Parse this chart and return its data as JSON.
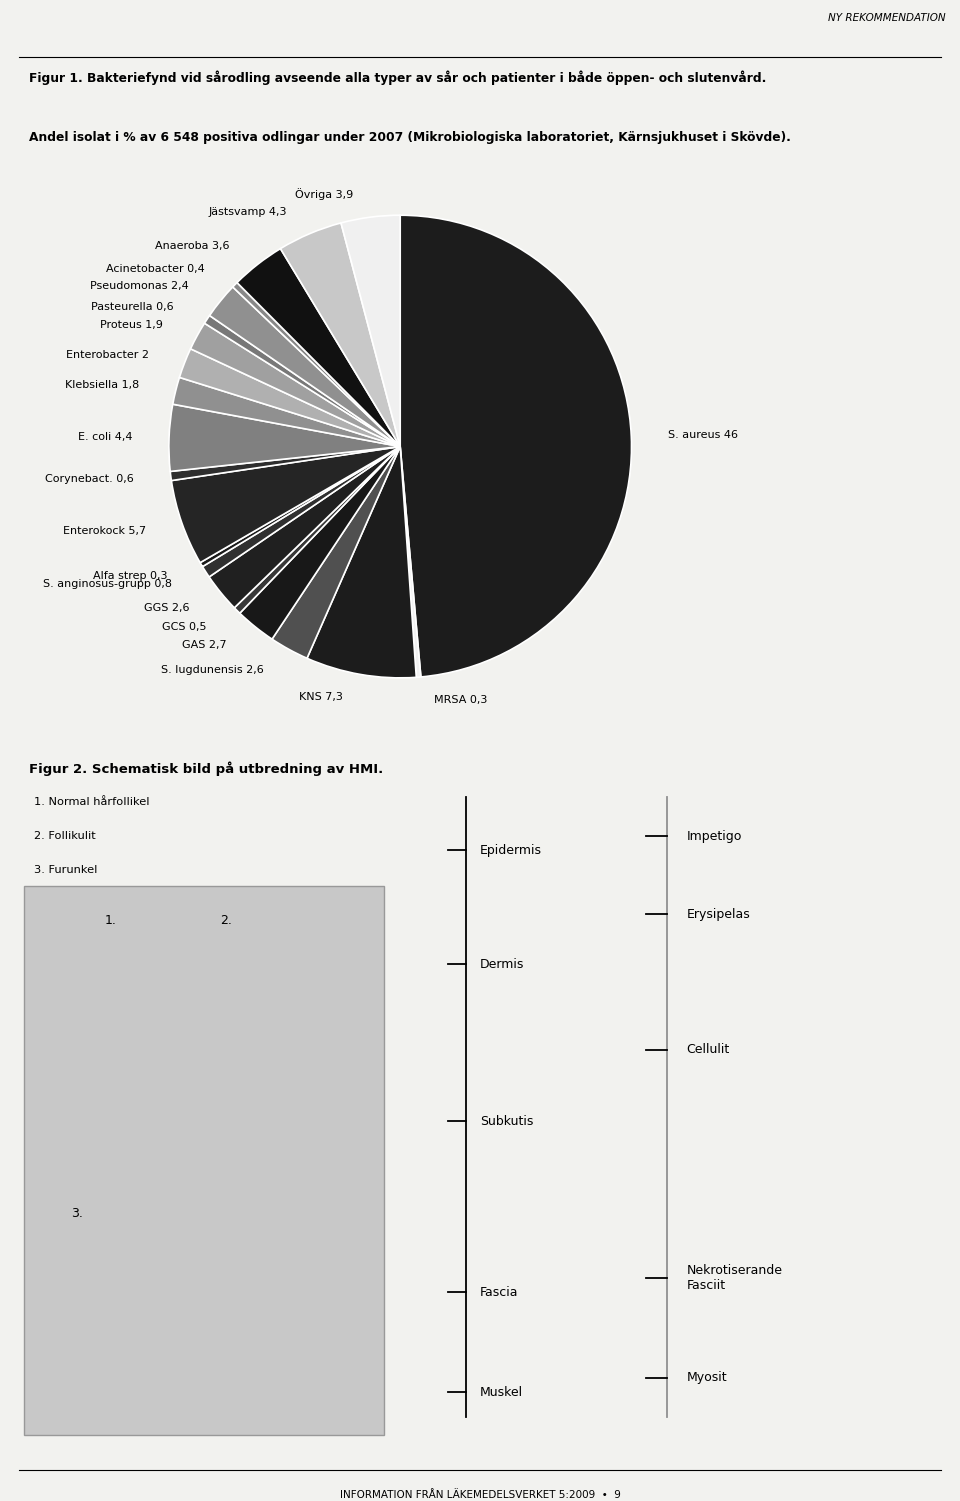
{
  "title1": "Figur 1. Bakteriefynd vid sårodling avseende alla typer av sår och patienter i både öppen- och slutenvård.",
  "title2": "Andel isolat i % av 6 548 positiva odlingar under 2007 (Mikrobiologiska laboratoriet, Kärnsjukhuset i Skövde).",
  "header": "NY REKOMMENDATION",
  "footer": "INFORMATION FRÅN LÄKEMEDELSVERKET 5:2009  •  9",
  "fig2_title": "Figur 2. Schematisk bild på utbredning av HMI.",
  "fig2_items": [
    "1. Normal hårfollikel",
    "2. Follikulit",
    "3. Furunkel"
  ],
  "labels_ordered": [
    "S. aureus 46",
    "MRSA 0,3",
    "KNS 7,3",
    "S. lugdunensis 2,6",
    "GAS 2,7",
    "GCS 0,5",
    "GGS 2,6",
    "S. anginosus-grupp 0,8",
    "Alfa strep 0,3",
    "Enterokock 5,7",
    "Corynebact. 0,6",
    "E. coli 4,4",
    "Klebsiella 1,8",
    "Enterobacter 2",
    "Proteus 1,9",
    "Pasteurella 0,6",
    "Pseudomonas 2,4",
    "Acinetobacter 0,4",
    "Anaeroba 3,6",
    "Jästsvamp 4,3",
    "Övriga 3,9"
  ],
  "values_ordered": [
    46,
    0.3,
    7.3,
    2.6,
    2.7,
    0.5,
    2.6,
    0.8,
    0.3,
    5.7,
    0.6,
    4.4,
    1.8,
    2.0,
    1.9,
    0.6,
    2.4,
    0.4,
    3.6,
    4.3,
    3.9
  ],
  "wedge_colors": [
    "#1c1c1c",
    "#f2f2f2",
    "#1c1c1c",
    "#505050",
    "#181818",
    "#383838",
    "#202020",
    "#303030",
    "#1a1a1a",
    "#252525",
    "#2e2e2e",
    "#808080",
    "#909090",
    "#b0b0b0",
    "#a0a0a0",
    "#787878",
    "#909090",
    "#888888",
    "#111111",
    "#c8c8c8",
    "#f0f0f0"
  ],
  "background_color": "#f2f2ef",
  "layer_data": [
    [
      "Epidermis",
      0.86
    ],
    [
      "Dermis",
      0.7
    ],
    [
      "Subkutis",
      0.48
    ],
    [
      "Fascia",
      0.24
    ],
    [
      "Muskel",
      0.1
    ]
  ],
  "right_labels": [
    [
      "Impetigo",
      0.88
    ],
    [
      "Erysipelas",
      0.77
    ],
    [
      "Cellulit",
      0.58
    ],
    [
      "Nekrotiserande\nFasciit",
      0.26
    ],
    [
      "Myosit",
      0.12
    ]
  ]
}
